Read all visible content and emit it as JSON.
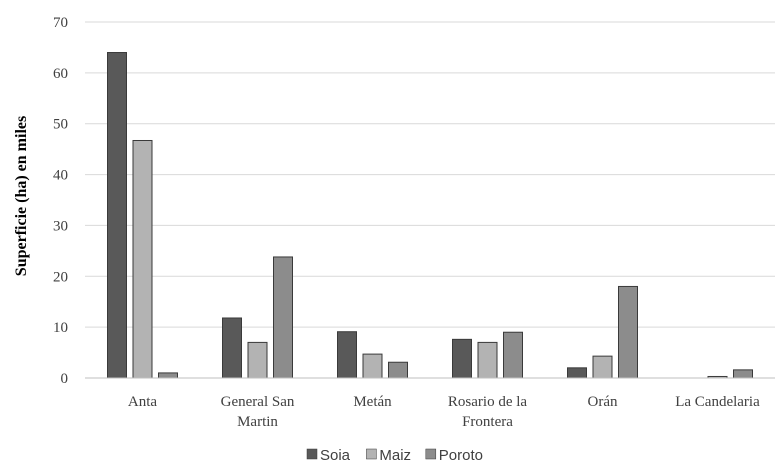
{
  "chart_data": {
    "type": "bar",
    "title": "",
    "xlabel": "",
    "ylabel": "Superficie (ha) en miles",
    "ylim": [
      0,
      70
    ],
    "yticks": [
      "0",
      "10",
      "20",
      "30",
      "40",
      "50",
      "60",
      "70"
    ],
    "grid": true,
    "legend_position": "bottom",
    "categories": [
      [
        "Anta"
      ],
      [
        "General San",
        "Martin"
      ],
      [
        "Metán"
      ],
      [
        "Rosario de la",
        "Frontera"
      ],
      [
        "Orán"
      ],
      [
        "La Candelaria"
      ]
    ],
    "series": [
      {
        "name": "Soia",
        "color": "#595959",
        "values": [
          64.0,
          11.8,
          9.1,
          7.6,
          2.0,
          0.0
        ]
      },
      {
        "name": "Maiz",
        "color": "#b3b3b3",
        "values": [
          46.7,
          7.0,
          4.7,
          7.0,
          4.3,
          0.3
        ]
      },
      {
        "name": "Poroto",
        "color": "#8c8c8c",
        "values": [
          1.0,
          23.8,
          3.1,
          9.0,
          18.0,
          1.6
        ]
      }
    ]
  }
}
